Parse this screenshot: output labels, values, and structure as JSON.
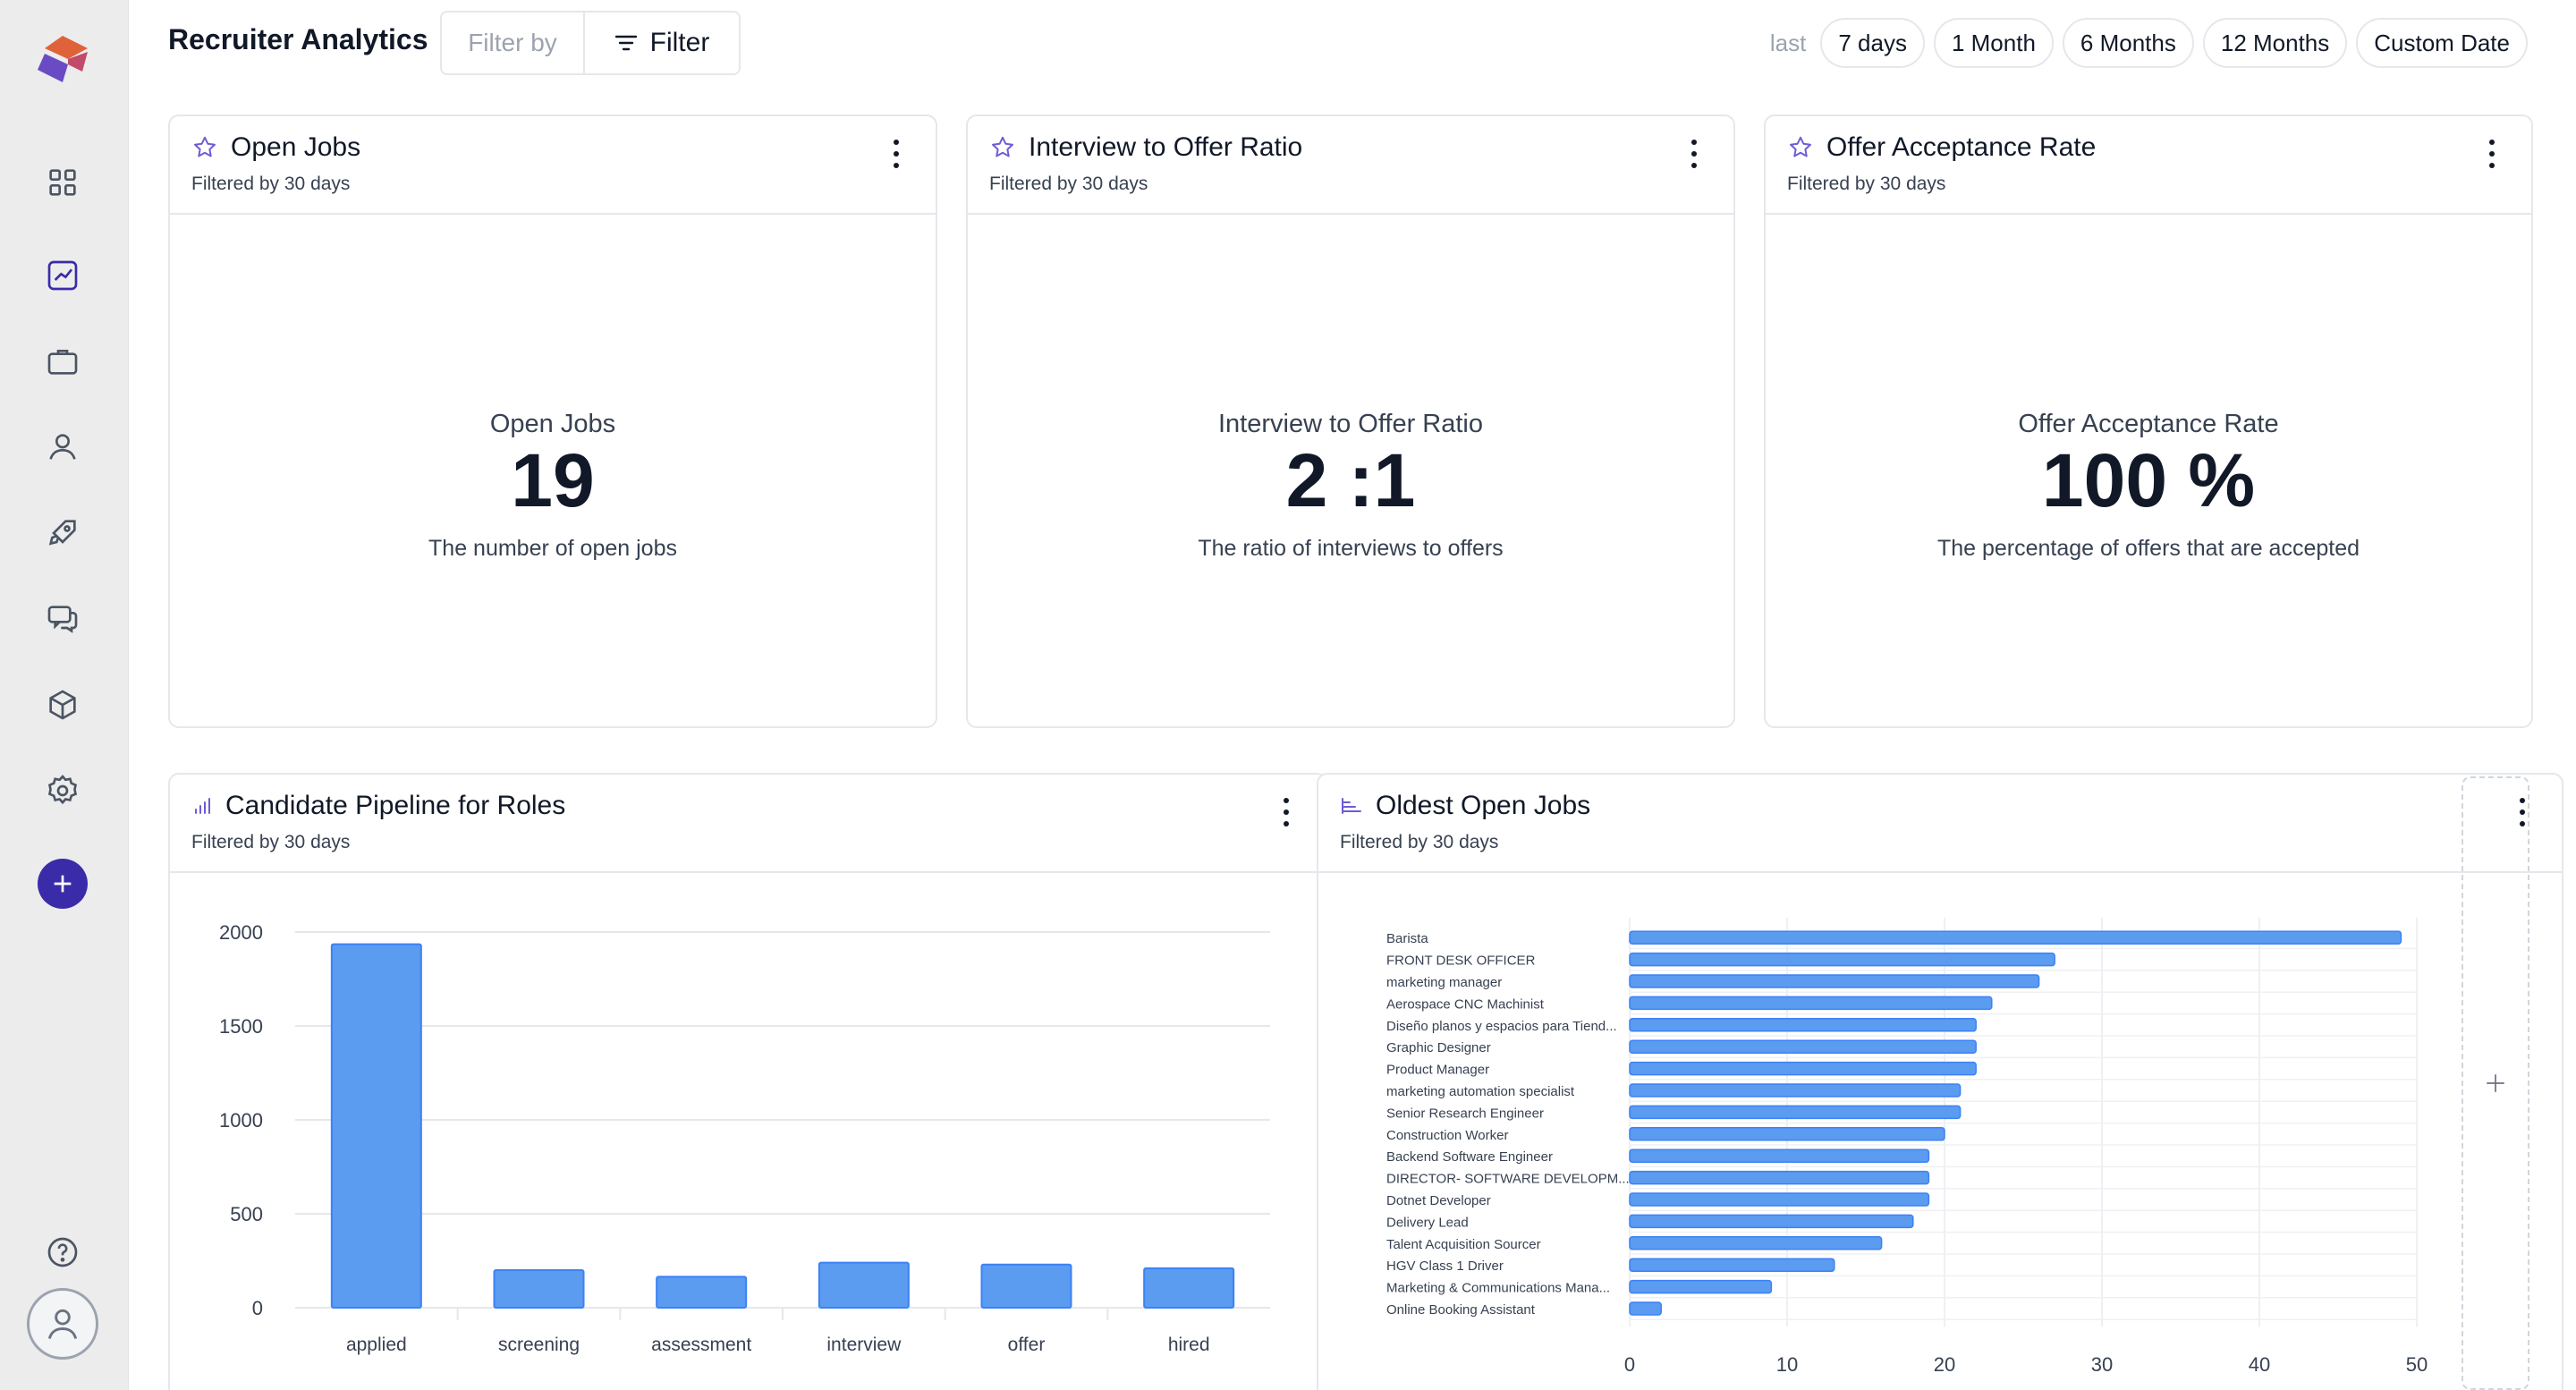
{
  "app": {
    "logo": "brand-logo"
  },
  "sidebar": {
    "icons": [
      "grid-icon",
      "analytics-icon",
      "briefcase-icon",
      "user-icon",
      "rocket-icon",
      "chat-icon",
      "cube-icon",
      "gear-icon",
      "plus-icon",
      "help-icon",
      "avatar-icon"
    ],
    "active": "analytics-icon"
  },
  "header": {
    "title": "Recruiter Analytics",
    "filter_by_placeholder": "Filter by",
    "filter_label": "Filter",
    "range_label": "last",
    "ranges": [
      "7 days",
      "1 Month",
      "6 Months",
      "12 Months",
      "Custom Date"
    ]
  },
  "cards": {
    "open_jobs": {
      "title": "Open Jobs",
      "subtitle": "Filtered by 30 days",
      "label": "Open Jobs",
      "value": "19",
      "desc": "The number of open jobs"
    },
    "interview_offer": {
      "title": "Interview to Offer Ratio",
      "subtitle": "Filtered by 30 days",
      "label": "Interview to Offer Ratio",
      "value": "2 :1",
      "desc": "The ratio of interviews to offers"
    },
    "offer_accept": {
      "title": "Offer Acceptance Rate",
      "subtitle": "Filtered by 30 days",
      "label": "Offer Acceptance Rate",
      "value": "100 %",
      "desc": "The percentage of offers that are accepted"
    },
    "pipeline": {
      "title": "Candidate Pipeline for Roles",
      "subtitle": "Filtered by 30 days"
    },
    "oldest": {
      "title": "Oldest Open Jobs",
      "subtitle": "Filtered by 30 days"
    }
  },
  "colors": {
    "accent": "#3a2ca8",
    "bar": "#5b9bf0",
    "bar_stroke": "#3b82f6",
    "star": "#6d5cd6"
  },
  "chart_data": [
    {
      "type": "bar",
      "title": "",
      "categories": [
        "applied",
        "screening",
        "assessment",
        "interview",
        "offer",
        "hired"
      ],
      "values": [
        1935,
        200,
        165,
        240,
        230,
        210
      ],
      "ylim": [
        0,
        2000
      ],
      "yticks": [
        0,
        500,
        1000,
        1500,
        2000
      ],
      "grid": true
    },
    {
      "type": "bar",
      "orientation": "horizontal",
      "title": "",
      "categories": [
        "Barista",
        "FRONT DESK OFFICER",
        "marketing manager",
        "Aerospace CNC Machinist",
        "Diseño planos y espacios para Tiend...",
        "Graphic Designer",
        "Product Manager",
        "marketing automation specialist",
        "Senior Research Engineer",
        "Construction Worker",
        "Backend Software Engineer",
        "DIRECTOR- SOFTWARE DEVELOPM...",
        "Dotnet Developer",
        "Delivery Lead",
        "Talent Acquisition Sourcer",
        "HGV Class 1 Driver",
        "Marketing & Communications Mana...",
        "Online Booking Assistant"
      ],
      "values": [
        49,
        27,
        26,
        23,
        22,
        22,
        22,
        21,
        21,
        20,
        19,
        19,
        19,
        18,
        16,
        13,
        9,
        2
      ],
      "xlim": [
        0,
        50
      ],
      "xticks": [
        0,
        10,
        20,
        30,
        40,
        50
      ],
      "grid": true
    }
  ]
}
